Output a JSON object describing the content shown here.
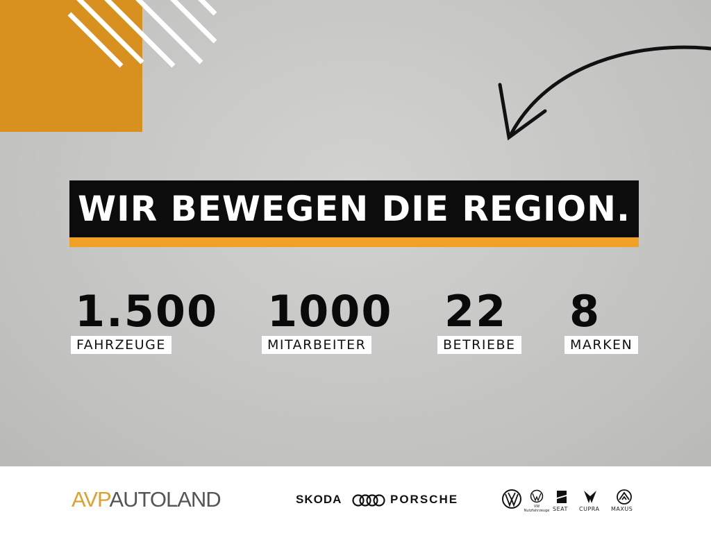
{
  "headline": "WIR BEWEGEN DIE REGION.",
  "stats": [
    {
      "value": "1.500",
      "label": "FAHRZEUGE"
    },
    {
      "value": "1000",
      "label": "MITARBEITER"
    },
    {
      "value": "22",
      "label": "BETRIEBE"
    },
    {
      "value": "8",
      "label": "MARKEN"
    }
  ],
  "footer": {
    "logo_part1": "AVP",
    "logo_part2": "AUTOLAND",
    "brands": [
      "SKODA",
      "AUDI",
      "PORSCHE",
      "VW",
      "VW Nutzfahrzeuge",
      "SEAT",
      "CUPRA",
      "MAXUS"
    ],
    "brand_text": {
      "skoda": "SKODA",
      "porsche": "PORSCHE",
      "seat": "SEAT",
      "cupra": "CUPRA",
      "maxus": "MAXUS"
    }
  },
  "colors": {
    "accent": "#d8911f",
    "banner": "#0c0c0c",
    "background": "#c8c8c6"
  }
}
